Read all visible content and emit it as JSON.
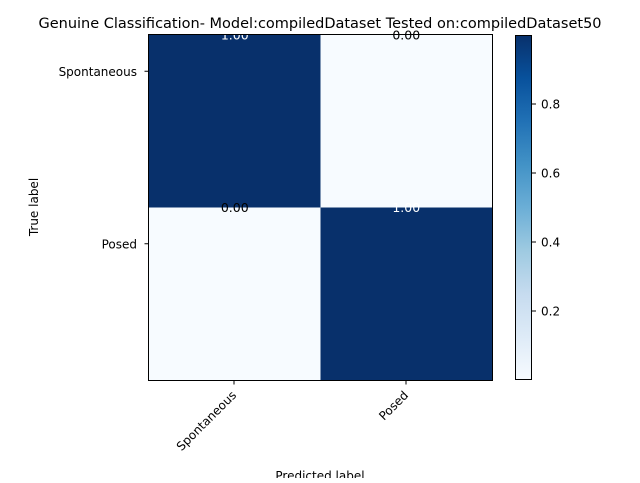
{
  "chart_data": {
    "type": "heatmap",
    "title": "Genuine Classification- Model:compiledDataset Tested on:compiledDataset50",
    "xlabel": "Predicted label",
    "ylabel": "True label",
    "x_categories": [
      "Spontaneous",
      "Posed"
    ],
    "y_categories": [
      "Spontaneous",
      "Posed"
    ],
    "values": [
      [
        1.0,
        0.0
      ],
      [
        0.0,
        1.0
      ]
    ],
    "cell_labels": [
      [
        "1.00",
        "0.00"
      ],
      [
        "0.00",
        "1.00"
      ]
    ],
    "colormap": "Blues",
    "color_low": "#f7fbff",
    "color_high": "#08306b",
    "colorbar": {
      "min": 0.0,
      "max": 1.0,
      "ticks": [
        0.2,
        0.4,
        0.6,
        0.8
      ],
      "tick_labels": [
        "0.2",
        "0.4",
        "0.6",
        "0.8"
      ]
    },
    "grid": false
  }
}
